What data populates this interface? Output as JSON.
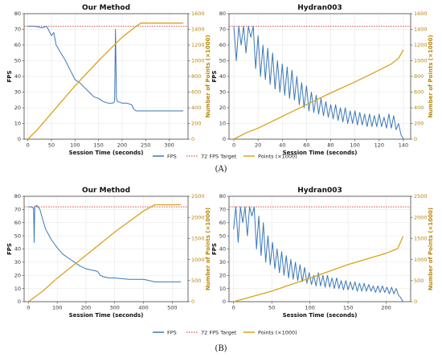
{
  "figure": {
    "rows": [
      {
        "caption": "(A)",
        "legend": [
          "FPS",
          "72 FPS Target",
          "Points (×1000)"
        ]
      },
      {
        "caption": "(B)",
        "legend": [
          "FPS",
          "72 FPS Target",
          "Points (×1000)"
        ]
      }
    ],
    "colors": {
      "fps": "#3a78b8",
      "target": "#d9534f",
      "points": "#d9a21b"
    }
  },
  "chart_data": [
    {
      "type": "line",
      "title": "Our Method",
      "xlabel": "Session Time (seconds)",
      "ylabel": "FPS",
      "y2label": "Number of Points (×1000)",
      "xlim": [
        -8,
        340
      ],
      "xticks": [
        0,
        50,
        100,
        150,
        200,
        250,
        300
      ],
      "ylim": [
        0,
        80
      ],
      "yticks": [
        0,
        10,
        20,
        30,
        40,
        50,
        60,
        70,
        80
      ],
      "y2lim": [
        0,
        1600
      ],
      "y2ticks": [
        0,
        200,
        400,
        600,
        800,
        1000,
        1200,
        1400,
        1600
      ],
      "target": 72,
      "series": [
        {
          "name": "FPS",
          "axis": "left",
          "x": [
            0,
            15,
            30,
            40,
            50,
            55,
            60,
            70,
            80,
            90,
            100,
            110,
            120,
            130,
            140,
            150,
            160,
            170,
            180,
            184,
            186,
            188,
            190,
            200,
            210,
            220,
            225,
            230,
            240,
            260,
            280,
            300,
            320,
            330
          ],
          "y": [
            72,
            72,
            71,
            72,
            66,
            68,
            60,
            55,
            50,
            44,
            38,
            36,
            33,
            30,
            27,
            26,
            24,
            23,
            23,
            24,
            70,
            26,
            24,
            23,
            23,
            22,
            19,
            18,
            18,
            18,
            18,
            18,
            18,
            18
          ]
        },
        {
          "name": "Points (×1000)",
          "axis": "right",
          "x": [
            0,
            20,
            50,
            100,
            150,
            200,
            230,
            240,
            260,
            300,
            330
          ],
          "y": [
            0,
            120,
            330,
            680,
            1000,
            1300,
            1440,
            1480,
            1480,
            1480,
            1480
          ]
        }
      ]
    },
    {
      "type": "line",
      "title": "Hydran003",
      "xlabel": "Session Time (seconds)",
      "ylabel": "FPS",
      "y2label": "Number of Points (×1000)",
      "xlim": [
        -4,
        146
      ],
      "xticks": [
        0,
        20,
        40,
        60,
        80,
        100,
        120,
        140
      ],
      "ylim": [
        0,
        80
      ],
      "yticks": [
        0,
        10,
        20,
        30,
        40,
        50,
        60,
        70,
        80
      ],
      "y2lim": [
        0,
        1600
      ],
      "y2ticks": [
        0,
        200,
        400,
        600,
        800,
        1000,
        1200,
        1400,
        1600
      ],
      "target": 72,
      "series": [
        {
          "name": "FPS",
          "axis": "left",
          "x": [
            0,
            2,
            4,
            6,
            8,
            10,
            12,
            14,
            16,
            18,
            20,
            22,
            24,
            26,
            28,
            30,
            32,
            34,
            36,
            38,
            40,
            42,
            44,
            46,
            48,
            50,
            52,
            54,
            56,
            58,
            60,
            62,
            64,
            66,
            68,
            70,
            72,
            74,
            76,
            78,
            80,
            82,
            84,
            86,
            88,
            90,
            92,
            94,
            96,
            98,
            100,
            102,
            104,
            106,
            108,
            110,
            112,
            114,
            116,
            118,
            120,
            122,
            124,
            126,
            128,
            130,
            132,
            134,
            136,
            138,
            140
          ],
          "y": [
            72,
            50,
            72,
            60,
            72,
            55,
            72,
            65,
            72,
            45,
            66,
            40,
            60,
            38,
            58,
            35,
            55,
            32,
            50,
            30,
            48,
            28,
            46,
            26,
            44,
            25,
            40,
            22,
            36,
            20,
            34,
            18,
            30,
            17,
            28,
            16,
            26,
            15,
            24,
            14,
            22,
            13,
            22,
            12,
            20,
            11,
            20,
            10,
            18,
            10,
            18,
            9,
            17,
            9,
            16,
            8,
            16,
            8,
            15,
            8,
            16,
            8,
            14,
            7,
            16,
            7,
            15,
            6,
            10,
            3,
            0
          ]
        },
        {
          "name": "Points (×1000)",
          "axis": "right",
          "x": [
            0,
            10,
            20,
            40,
            60,
            80,
            100,
            120,
            130,
            136,
            140
          ],
          "y": [
            0,
            80,
            140,
            290,
            440,
            590,
            730,
            880,
            960,
            1030,
            1140
          ]
        }
      ]
    },
    {
      "type": "line",
      "title": "Our Method",
      "xlabel": "Session Time (seconds)",
      "ylabel": "FPS",
      "y2label": "Number of Points (×1000)",
      "xlim": [
        -15,
        555
      ],
      "xticks": [
        0,
        100,
        200,
        300,
        400,
        500
      ],
      "ylim": [
        0,
        80
      ],
      "yticks": [
        0,
        10,
        20,
        30,
        40,
        50,
        60,
        70,
        80
      ],
      "y2lim": [
        0,
        2500
      ],
      "y2ticks": [
        0,
        500,
        1000,
        1500,
        2000,
        2500
      ],
      "target": 72,
      "series": [
        {
          "name": "FPS",
          "axis": "left",
          "x": [
            0,
            10,
            18,
            20,
            22,
            30,
            40,
            45,
            50,
            60,
            80,
            100,
            120,
            140,
            160,
            180,
            200,
            220,
            240,
            250,
            260,
            280,
            300,
            350,
            400,
            420,
            440,
            460,
            500,
            530
          ],
          "y": [
            72,
            72,
            71,
            45,
            72,
            73,
            70,
            66,
            62,
            55,
            47,
            41,
            36,
            33,
            30,
            27,
            25,
            24,
            23,
            20,
            19,
            18,
            18,
            17,
            17,
            16,
            15,
            15,
            15,
            15
          ]
        },
        {
          "name": "Points (×1000)",
          "axis": "right",
          "x": [
            0,
            50,
            100,
            200,
            300,
            400,
            440,
            460,
            500,
            530
          ],
          "y": [
            0,
            250,
            560,
            1100,
            1650,
            2150,
            2300,
            2300,
            2300,
            2300
          ]
        }
      ]
    },
    {
      "type": "line",
      "title": "Hydran003",
      "xlabel": "Session Time (seconds)",
      "ylabel": "FPS",
      "y2label": "Number of Points (×1000)",
      "xlim": [
        -6,
        232
      ],
      "xticks": [
        0,
        50,
        100,
        150,
        200
      ],
      "ylim": [
        0,
        80
      ],
      "yticks": [
        0,
        10,
        20,
        30,
        40,
        50,
        60,
        70,
        80
      ],
      "y2lim": [
        0,
        2500
      ],
      "y2ticks": [
        0,
        500,
        1000,
        1500,
        2000,
        2500
      ],
      "target": 72,
      "series": [
        {
          "name": "FPS",
          "axis": "left",
          "x": [
            0,
            3,
            6,
            9,
            12,
            15,
            18,
            21,
            24,
            27,
            30,
            33,
            36,
            39,
            42,
            45,
            48,
            51,
            54,
            57,
            60,
            63,
            66,
            69,
            72,
            75,
            78,
            81,
            84,
            87,
            90,
            93,
            96,
            99,
            102,
            105,
            108,
            111,
            114,
            117,
            120,
            123,
            126,
            129,
            132,
            135,
            138,
            141,
            144,
            147,
            150,
            153,
            156,
            159,
            162,
            165,
            168,
            171,
            174,
            177,
            180,
            183,
            186,
            189,
            192,
            195,
            198,
            201,
            204,
            207,
            210,
            213,
            216,
            219,
            222
          ],
          "y": [
            55,
            72,
            45,
            72,
            60,
            72,
            50,
            72,
            65,
            72,
            40,
            65,
            35,
            60,
            30,
            50,
            28,
            45,
            25,
            40,
            22,
            38,
            20,
            35,
            18,
            32,
            17,
            30,
            16,
            28,
            15,
            26,
            14,
            22,
            13,
            20,
            12,
            22,
            12,
            20,
            11,
            20,
            11,
            18,
            10,
            18,
            10,
            16,
            9,
            16,
            9,
            15,
            9,
            15,
            8,
            14,
            8,
            14,
            8,
            13,
            8,
            12,
            7,
            12,
            7,
            12,
            7,
            11,
            6,
            11,
            6,
            10,
            5,
            3,
            0
          ]
        },
        {
          "name": "Points (×1000)",
          "axis": "right",
          "x": [
            0,
            20,
            50,
            100,
            150,
            200,
            215,
            222
          ],
          "y": [
            0,
            100,
            250,
            560,
            880,
            1150,
            1260,
            1550
          ]
        }
      ]
    }
  ]
}
